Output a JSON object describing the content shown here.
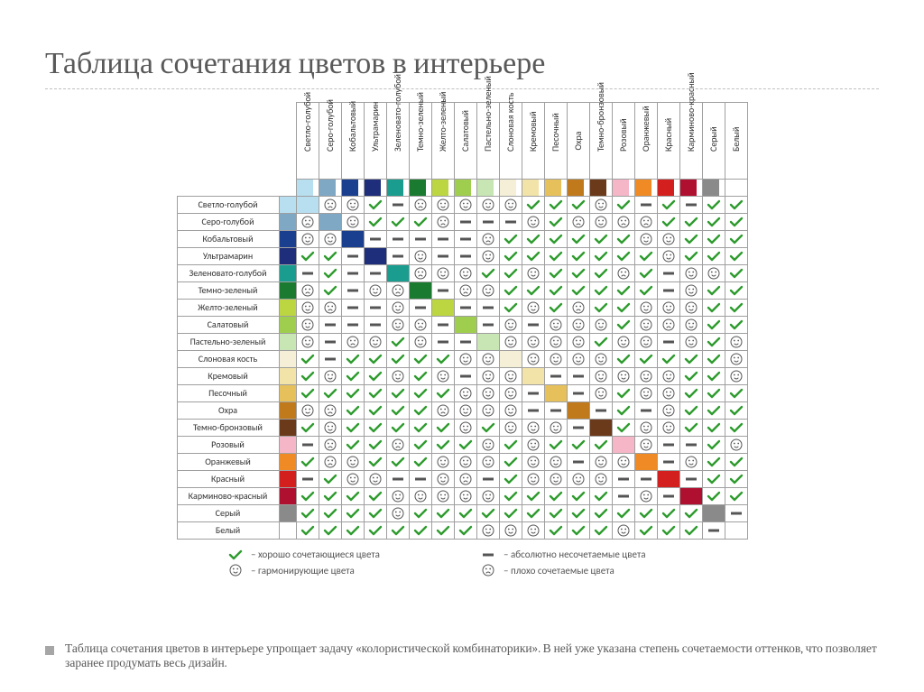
{
  "title": "Таблица сочетания цветов в интерьере",
  "colors": [
    {
      "label": "Светло-голубой",
      "hex": "#b8dff0"
    },
    {
      "label": "Серо-голубой",
      "hex": "#7fa8c4"
    },
    {
      "label": "Кобальтовый",
      "hex": "#1a3f8f"
    },
    {
      "label": "Ультрамарин",
      "hex": "#1f2e7a"
    },
    {
      "label": "Зеленовато-голубой",
      "hex": "#1a9c8e"
    },
    {
      "label": "Темно-зеленый",
      "hex": "#1a7a2f"
    },
    {
      "label": "Желто-зеленый",
      "hex": "#bcd642"
    },
    {
      "label": "Салатовый",
      "hex": "#9fce4e"
    },
    {
      "label": "Пастельно-зеленый",
      "hex": "#c7e6b4"
    },
    {
      "label": "Слоновая кость",
      "hex": "#f4efd6"
    },
    {
      "label": "Кремовый",
      "hex": "#f2e3a8"
    },
    {
      "label": "Песочный",
      "hex": "#e6c05b"
    },
    {
      "label": "Охра",
      "hex": "#c07a1c"
    },
    {
      "label": "Темно-бронзовый",
      "hex": "#6b3a1a"
    },
    {
      "label": "Розовый",
      "hex": "#f5b6c8"
    },
    {
      "label": "Оранжевый",
      "hex": "#f08a24"
    },
    {
      "label": "Красный",
      "hex": "#d41f1f"
    },
    {
      "label": "Карминово-красный",
      "hex": "#b01030"
    },
    {
      "label": "Серый",
      "hex": "#8a8a8a"
    },
    {
      "label": "Белый",
      "hex": "#ffffff"
    }
  ],
  "symbols": {
    "check": {
      "stroke": "#2e9b2e"
    },
    "dash": {
      "fill": "#555555"
    },
    "smile": {
      "stroke": "#555555"
    },
    "frown": {
      "stroke": "#555555"
    }
  },
  "legend": [
    {
      "sym": "check",
      "text": "– хорошо сочетающиеся цвета"
    },
    {
      "sym": "dash",
      "text": "– абсолютно несочетаемые цвета"
    },
    {
      "sym": "smile",
      "text": "– гармонирующие цвета"
    },
    {
      "sym": "frown",
      "text": "– плохо сочетаемые цвета"
    }
  ],
  "grid": [
    [
      "",
      "f",
      "s",
      "c",
      "d",
      "f",
      "s",
      "s",
      "s",
      "s",
      "c",
      "c",
      "c",
      "s",
      "c",
      "d",
      "c",
      "d",
      "c",
      "c"
    ],
    [
      "f",
      "",
      "s",
      "c",
      "c",
      "c",
      "f",
      "d",
      "d",
      "d",
      "s",
      "c",
      "f",
      "s",
      "f",
      "f",
      "c",
      "c",
      "c",
      "c"
    ],
    [
      "s",
      "s",
      "",
      "d",
      "d",
      "d",
      "d",
      "d",
      "f",
      "c",
      "c",
      "c",
      "c",
      "c",
      "c",
      "s",
      "s",
      "c",
      "c",
      "c"
    ],
    [
      "c",
      "c",
      "d",
      "",
      "d",
      "s",
      "d",
      "d",
      "s",
      "c",
      "c",
      "c",
      "c",
      "c",
      "c",
      "c",
      "s",
      "c",
      "c",
      "c"
    ],
    [
      "d",
      "c",
      "d",
      "d",
      "",
      "f",
      "s",
      "s",
      "c",
      "c",
      "s",
      "c",
      "c",
      "c",
      "f",
      "c",
      "d",
      "s",
      "s",
      "c"
    ],
    [
      "f",
      "c",
      "d",
      "s",
      "f",
      "",
      "d",
      "f",
      "s",
      "c",
      "c",
      "c",
      "c",
      "c",
      "c",
      "c",
      "d",
      "s",
      "c",
      "c"
    ],
    [
      "s",
      "f",
      "d",
      "d",
      "s",
      "d",
      "",
      "d",
      "d",
      "c",
      "s",
      "c",
      "f",
      "c",
      "c",
      "s",
      "s",
      "s",
      "c",
      "c"
    ],
    [
      "s",
      "d",
      "d",
      "d",
      "s",
      "f",
      "d",
      "",
      "d",
      "s",
      "d",
      "s",
      "s",
      "s",
      "c",
      "s",
      "f",
      "s",
      "c",
      "c"
    ],
    [
      "s",
      "d",
      "f",
      "s",
      "c",
      "s",
      "d",
      "d",
      "",
      "s",
      "s",
      "s",
      "s",
      "c",
      "s",
      "s",
      "d",
      "s",
      "c",
      "s"
    ],
    [
      "c",
      "d",
      "c",
      "c",
      "c",
      "c",
      "c",
      "s",
      "s",
      "",
      "s",
      "s",
      "s",
      "s",
      "c",
      "c",
      "c",
      "c",
      "c",
      "s"
    ],
    [
      "c",
      "s",
      "c",
      "c",
      "s",
      "c",
      "s",
      "d",
      "s",
      "s",
      "",
      "d",
      "d",
      "s",
      "s",
      "s",
      "s",
      "c",
      "c",
      "s"
    ],
    [
      "c",
      "c",
      "c",
      "c",
      "c",
      "c",
      "c",
      "s",
      "s",
      "s",
      "d",
      "",
      "d",
      "s",
      "c",
      "s",
      "s",
      "c",
      "c",
      "c"
    ],
    [
      "s",
      "f",
      "c",
      "c",
      "c",
      "c",
      "f",
      "s",
      "s",
      "s",
      "d",
      "d",
      "",
      "d",
      "c",
      "d",
      "s",
      "c",
      "c",
      "c"
    ],
    [
      "c",
      "s",
      "c",
      "c",
      "c",
      "c",
      "c",
      "s",
      "c",
      "s",
      "s",
      "s",
      "d",
      "",
      "c",
      "s",
      "s",
      "c",
      "c",
      "c"
    ],
    [
      "d",
      "f",
      "c",
      "c",
      "f",
      "c",
      "c",
      "c",
      "s",
      "c",
      "s",
      "c",
      "c",
      "c",
      "",
      "s",
      "d",
      "d",
      "c",
      "s"
    ],
    [
      "c",
      "f",
      "s",
      "c",
      "c",
      "c",
      "s",
      "s",
      "s",
      "c",
      "s",
      "s",
      "d",
      "s",
      "s",
      "",
      "d",
      "s",
      "c",
      "c"
    ],
    [
      "d",
      "c",
      "s",
      "s",
      "d",
      "d",
      "s",
      "f",
      "d",
      "c",
      "s",
      "s",
      "s",
      "s",
      "d",
      "d",
      "",
      "d",
      "c",
      "c"
    ],
    [
      "c",
      "c",
      "c",
      "c",
      "s",
      "s",
      "s",
      "s",
      "s",
      "c",
      "c",
      "c",
      "c",
      "c",
      "d",
      "s",
      "d",
      "",
      "c",
      "c"
    ],
    [
      "c",
      "c",
      "c",
      "c",
      "s",
      "c",
      "c",
      "c",
      "c",
      "c",
      "c",
      "c",
      "c",
      "c",
      "c",
      "c",
      "c",
      "c",
      "",
      "d"
    ],
    [
      "c",
      "c",
      "c",
      "c",
      "c",
      "c",
      "c",
      "c",
      "s",
      "s",
      "s",
      "c",
      "c",
      "c",
      "s",
      "c",
      "c",
      "c",
      "d",
      ""
    ]
  ],
  "footer_text": "Таблица сочетания цветов в интерьере упрощает задачу «колористической комбинаторики». В ней уже указана степень сочетаемости оттенков, что позволяет заранее продумать весь дизайн."
}
